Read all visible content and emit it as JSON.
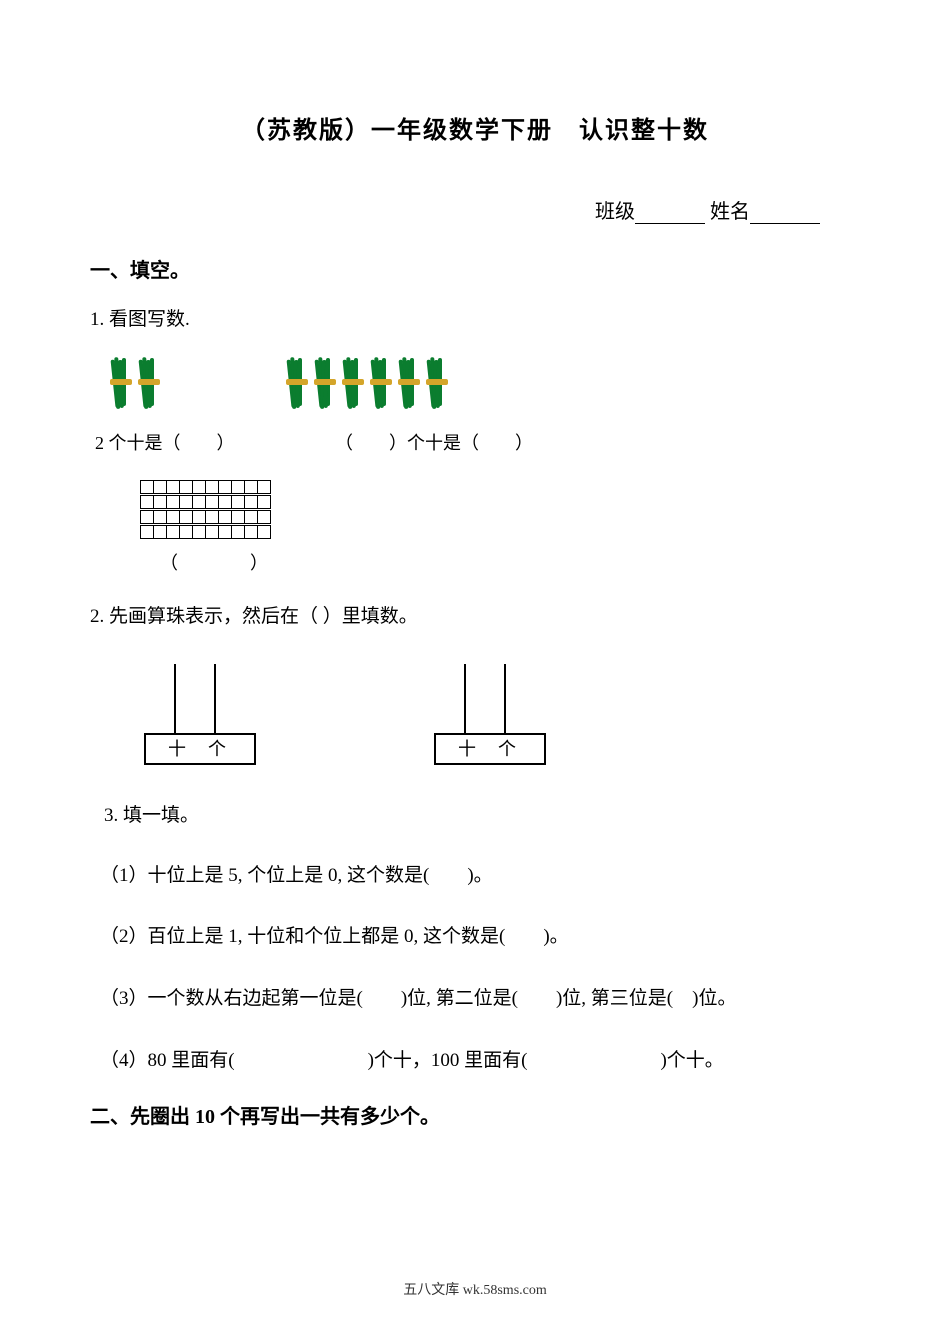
{
  "title": "（苏教版）一年级数学下册　认识整十数",
  "class_label": "班级",
  "name_label": "姓名",
  "section1": {
    "header": "一、填空。",
    "q1": {
      "text": "1. 看图写数.",
      "caption_left": "2 个十是（　　）",
      "caption_right": "（　　）个十是（　　）",
      "grid_caption": "（　　　　）",
      "bundle_color": "#0b7d2f",
      "bundle_band_color": "#d4a52a",
      "bundles_group1_count": 2,
      "bundles_group2_count": 6,
      "grid_rows": 4,
      "grid_cols": 10,
      "group_gap": 110
    },
    "q2": {
      "text": "2. 先画算珠表示，然后在（ ）里填数。",
      "tens_label": "十",
      "ones_label": "个"
    },
    "q3": {
      "text": "3. 填一填。",
      "items": [
        "（1）十位上是 5, 个位上是 0, 这个数是(　　)。",
        "（2）百位上是 1, 十位和个位上都是 0, 这个数是(　　)。",
        "（3）一个数从右边起第一位是(　　)位, 第二位是(　　)位, 第三位是(　)位。",
        "（4）80 里面有(　　　　　　　)个十，100 里面有(　　　　　　　)个十。"
      ]
    }
  },
  "section2": {
    "header": "二、先圈出 10 个再写出一共有多少个。"
  },
  "footer": "五八文库 wk.58sms.com"
}
